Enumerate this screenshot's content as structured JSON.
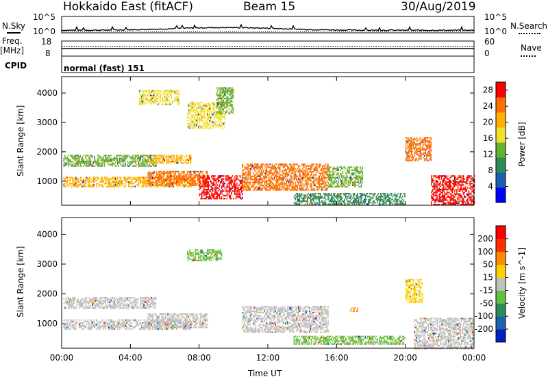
{
  "header": {
    "station": "Hokkaido East (fitACF)",
    "beam": "Beam 15",
    "date": "30/Aug/2019"
  },
  "panel_labels": {
    "nsky": "N.Sky",
    "nsearch": "N.Search",
    "freq": "Freq.",
    "mhz": "[MHz]",
    "nave": "Nave",
    "cpid": "CPID",
    "cpid_value": "normal (fast) 151"
  },
  "noise_ticks": {
    "left_top": "10^5",
    "left_bottom": "10^0",
    "right_top": "10^5",
    "right_bottom": "10^0"
  },
  "freq_ticks": {
    "left_top": "18",
    "left_bottom": "8",
    "right_top": "60",
    "right_bottom": "0"
  },
  "colors": {
    "power_high": "#ff0000",
    "power_mid": "#ffa500",
    "power_low": "#0000ff",
    "velocity_neg": "#ff0000",
    "velocity_zero": "#c0c0c0",
    "velocity_pos": "#0000ff"
  },
  "chart_data": [
    {
      "type": "heatmap",
      "title": "Power",
      "xlabel": "Time UT",
      "ylabel": "Slant Range [km]",
      "x_ticks": [
        "00:00",
        "04:00",
        "08:00",
        "12:00",
        "16:00",
        "20:00",
        "00:00"
      ],
      "y_ticks": [
        "1000",
        "2000",
        "3000",
        "4000"
      ],
      "xlim_hours": [
        0,
        24
      ],
      "ylim_km": [
        180,
        4560
      ],
      "colorbar": {
        "label": "Power [dB]",
        "ticks": [
          "4",
          "8",
          "12",
          "16",
          "20",
          "24",
          "28"
        ],
        "range": [
          0,
          30
        ],
        "colors": [
          "#0000ff",
          "#1a5fb0",
          "#2e8b57",
          "#66b032",
          "#f0e030",
          "#ffb000",
          "#ff7000",
          "#ff0000"
        ]
      },
      "regions": [
        {
          "t0": 0.1,
          "t1": 5.5,
          "r0": 1500,
          "r1": 1900,
          "level": 14
        },
        {
          "t0": 0.1,
          "t1": 7.5,
          "r0": 800,
          "r1": 1150,
          "level": 22
        },
        {
          "t0": 5.0,
          "t1": 7.5,
          "r0": 1600,
          "r1": 1900,
          "level": 21
        },
        {
          "t0": 5.0,
          "t1": 8.5,
          "r0": 850,
          "r1": 1350,
          "level": 24
        },
        {
          "t0": 7.3,
          "t1": 9.5,
          "r0": 2800,
          "r1": 3700,
          "level": 18
        },
        {
          "t0": 4.5,
          "t1": 6.8,
          "r0": 3600,
          "r1": 4100,
          "level": 16
        },
        {
          "t0": 8.0,
          "t1": 10.5,
          "r0": 400,
          "r1": 1200,
          "level": 27
        },
        {
          "t0": 10.5,
          "t1": 15.5,
          "r0": 700,
          "r1": 1600,
          "level": 24
        },
        {
          "t0": 15.5,
          "t1": 17.5,
          "r0": 800,
          "r1": 1500,
          "level": 14
        },
        {
          "t0": 20.0,
          "t1": 21.5,
          "r0": 1700,
          "r1": 2500,
          "level": 23
        },
        {
          "t0": 21.5,
          "t1": 24.0,
          "r0": 180,
          "r1": 1200,
          "level": 27
        },
        {
          "t0": 9.0,
          "t1": 10.0,
          "r0": 3300,
          "r1": 4200,
          "level": 12
        },
        {
          "t0": 13.5,
          "t1": 20.0,
          "r0": 200,
          "r1": 600,
          "level": 8
        }
      ]
    },
    {
      "type": "heatmap",
      "title": "Velocity",
      "xlabel": "Time UT",
      "ylabel": "Slant Range [km]",
      "x_ticks": [
        "00:00",
        "04:00",
        "08:00",
        "12:00",
        "16:00",
        "20:00",
        "00:00"
      ],
      "y_ticks": [
        "1000",
        "2000",
        "3000",
        "4000"
      ],
      "xlim_hours": [
        0,
        24
      ],
      "ylim_km": [
        180,
        4560
      ],
      "colorbar": {
        "label": "Velocity [m s^-1]",
        "ticks": [
          "200",
          "100",
          "50",
          "15",
          "-15",
          "-50",
          "-100",
          "-200"
        ],
        "range": [
          -250,
          250
        ],
        "colors": [
          "#0020c0",
          "#2060b0",
          "#2e8b57",
          "#66c040",
          "#c0c0c0",
          "#ffd000",
          "#ff8c00",
          "#ff3000",
          "#ff0000"
        ]
      },
      "regions": [
        {
          "t0": 0.1,
          "t1": 5.5,
          "r0": 1500,
          "r1": 1900,
          "level": 0
        },
        {
          "t0": 0.1,
          "t1": 7.5,
          "r0": 800,
          "r1": 1150,
          "level": 0
        },
        {
          "t0": 5.0,
          "t1": 8.5,
          "r0": 850,
          "r1": 1350,
          "level": 0
        },
        {
          "t0": 7.3,
          "t1": 9.3,
          "r0": 3100,
          "r1": 3500,
          "level": -80
        },
        {
          "t0": 10.5,
          "t1": 15.5,
          "r0": 700,
          "r1": 1600,
          "level": 0
        },
        {
          "t0": 20.5,
          "t1": 24.0,
          "r0": 180,
          "r1": 1200,
          "level": 0
        },
        {
          "t0": 13.5,
          "t1": 20.0,
          "r0": 300,
          "r1": 600,
          "level": -60
        },
        {
          "t0": 20.0,
          "t1": 21.0,
          "r0": 1700,
          "r1": 2500,
          "level": 30
        },
        {
          "t0": 16.8,
          "t1": 17.2,
          "r0": 1400,
          "r1": 1550,
          "level": 120
        }
      ]
    }
  ]
}
